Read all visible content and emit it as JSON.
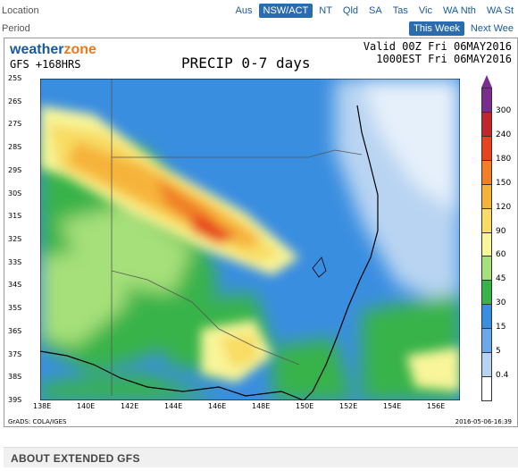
{
  "nav": {
    "location_label": "Location",
    "period_label": "Period",
    "location_tabs": [
      "Aus",
      "NSW/ACT",
      "NT",
      "Qld",
      "SA",
      "Tas",
      "Vic",
      "WA Nth",
      "WA St"
    ],
    "location_active_index": 1,
    "period_tabs": [
      "This Week",
      "Next Wee"
    ],
    "period_active_index": 0
  },
  "map": {
    "logo_text_1": "weather",
    "logo_text_2": "zone",
    "model": "GFS  +168HRS",
    "title": "PRECIP 0-7 days",
    "valid_line1": "Valid 00Z Fri 06MAY2016",
    "valid_line2": "1000EST Fri 06MAY2016",
    "lat_labels": [
      "25S",
      "26S",
      "27S",
      "28S",
      "29S",
      "30S",
      "31S",
      "32S",
      "33S",
      "34S",
      "35S",
      "36S",
      "37S",
      "38S",
      "39S"
    ],
    "lon_labels": [
      "138E",
      "140E",
      "142E",
      "144E",
      "146E",
      "148E",
      "150E",
      "152E",
      "154E",
      "156E"
    ],
    "credit": "GrADS: COLA/IGES",
    "timestamp": "2016-05-06-16:39"
  },
  "legend": {
    "labels": [
      "300",
      "240",
      "180",
      "150",
      "120",
      "90",
      "60",
      "45",
      "30",
      "15",
      "5",
      "0.4"
    ],
    "colors": [
      "#7a2c8f",
      "#c0272d",
      "#e8431f",
      "#f07f28",
      "#f6b33b",
      "#f8dc63",
      "#f8f59a",
      "#a6e07a",
      "#37b34a",
      "#3a8ee0",
      "#6aa8e8",
      "#b8d4f2",
      "#ffffff"
    ]
  },
  "about": {
    "heading": "ABOUT EXTENDED GFS"
  }
}
